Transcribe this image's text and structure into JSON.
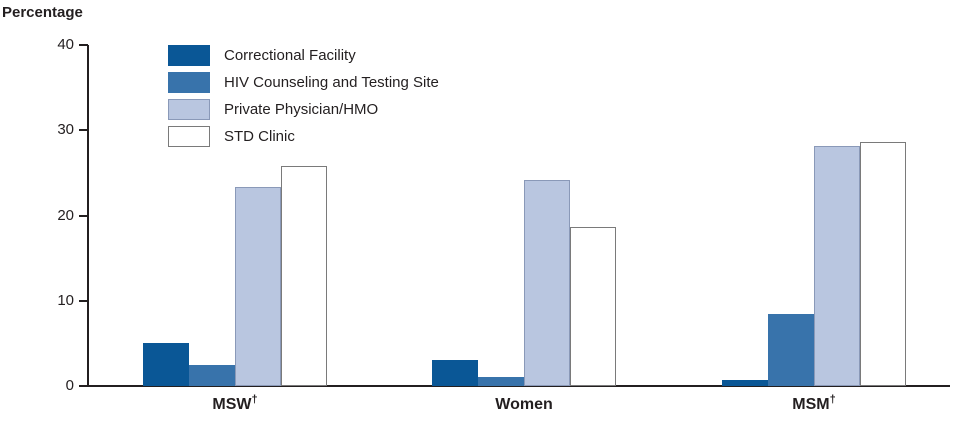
{
  "chart_data": {
    "type": "bar",
    "title": "Percentage",
    "ylabel": "Percentage",
    "xlabel": "",
    "ylim": [
      0,
      40
    ],
    "yticks": [
      0,
      10,
      20,
      30,
      40
    ],
    "grid": false,
    "legend_position": "top-left",
    "axis_color": "#231f20",
    "categories": [
      {
        "label": "MSW",
        "dagger": true
      },
      {
        "label": "Women",
        "dagger": false
      },
      {
        "label": "MSM",
        "dagger": true
      }
    ],
    "series": [
      {
        "name": "Correctional Facility",
        "color": "#0a5796",
        "border": null,
        "values": [
          5.0,
          3.0,
          0.7
        ]
      },
      {
        "name": "HIV Counseling and Testing Site",
        "color": "#3873ab",
        "border": null,
        "values": [
          2.5,
          1.1,
          8.5
        ]
      },
      {
        "name": "Private Physician/HMO",
        "color": "#b9c6e0",
        "border": "#8a99b8",
        "values": [
          23.4,
          24.2,
          28.2
        ]
      },
      {
        "name": "STD Clinic",
        "color": "#ffffff",
        "border": "#7a7a7a",
        "values": [
          25.8,
          18.7,
          28.6
        ]
      }
    ]
  }
}
